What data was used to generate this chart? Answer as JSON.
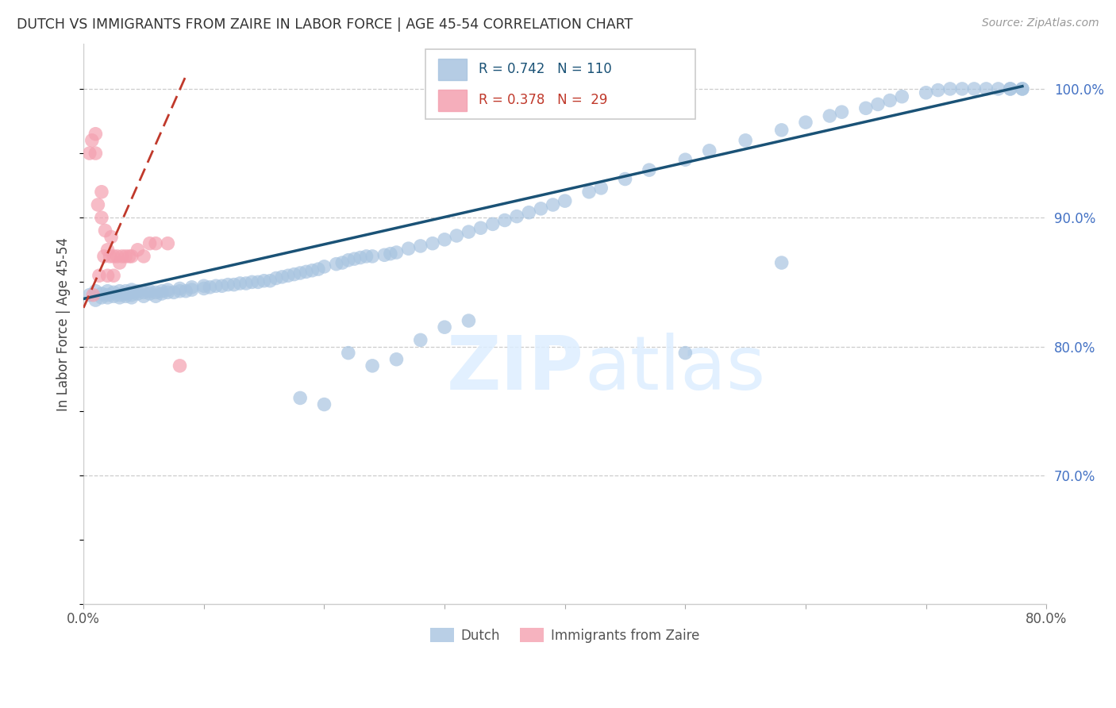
{
  "title": "DUTCH VS IMMIGRANTS FROM ZAIRE IN LABOR FORCE | AGE 45-54 CORRELATION CHART",
  "source": "Source: ZipAtlas.com",
  "ylabel": "In Labor Force | Age 45-54",
  "background_color": "#ffffff",
  "plot_bg_color": "#ffffff",
  "dutch_color": "#a8c4e0",
  "zaire_color": "#f4a0b0",
  "dutch_line_color": "#1a5276",
  "zaire_line_color": "#c0392b",
  "dutch_R": 0.742,
  "dutch_N": 110,
  "zaire_R": 0.378,
  "zaire_N": 29,
  "xmin": 0.0,
  "xmax": 0.8,
  "ymin": 0.6,
  "ymax": 1.035,
  "right_yticks": [
    1.0,
    0.9,
    0.8,
    0.7
  ],
  "right_yticklabels": [
    "100.0%",
    "90.0%",
    "80.0%",
    "70.0%"
  ],
  "watermark": "ZIPatlas",
  "dutch_x": [
    0.005,
    0.01,
    0.01,
    0.015,
    0.015,
    0.02,
    0.02,
    0.02,
    0.025,
    0.025,
    0.03,
    0.03,
    0.03,
    0.035,
    0.035,
    0.035,
    0.04,
    0.04,
    0.04,
    0.04,
    0.045,
    0.045,
    0.05,
    0.05,
    0.055,
    0.055,
    0.06,
    0.06,
    0.065,
    0.065,
    0.07,
    0.07,
    0.075,
    0.08,
    0.08,
    0.085,
    0.09,
    0.09,
    0.1,
    0.1,
    0.105,
    0.11,
    0.115,
    0.12,
    0.125,
    0.13,
    0.135,
    0.14,
    0.145,
    0.15,
    0.155,
    0.16,
    0.165,
    0.17,
    0.175,
    0.18,
    0.185,
    0.19,
    0.195,
    0.2,
    0.21,
    0.215,
    0.22,
    0.225,
    0.23,
    0.235,
    0.24,
    0.25,
    0.255,
    0.26,
    0.27,
    0.28,
    0.29,
    0.3,
    0.31,
    0.32,
    0.33,
    0.34,
    0.35,
    0.36,
    0.37,
    0.38,
    0.39,
    0.4,
    0.42,
    0.43,
    0.45,
    0.47,
    0.5,
    0.52,
    0.55,
    0.58,
    0.6,
    0.62,
    0.63,
    0.65,
    0.66,
    0.67,
    0.68,
    0.7,
    0.71,
    0.72,
    0.73,
    0.74,
    0.75,
    0.76,
    0.77,
    0.77,
    0.78,
    0.78
  ],
  "dutch_y": [
    0.84,
    0.836,
    0.843,
    0.838,
    0.841,
    0.838,
    0.84,
    0.843,
    0.839,
    0.842,
    0.838,
    0.84,
    0.843,
    0.839,
    0.841,
    0.843,
    0.838,
    0.84,
    0.842,
    0.844,
    0.841,
    0.843,
    0.839,
    0.842,
    0.841,
    0.843,
    0.839,
    0.842,
    0.841,
    0.843,
    0.842,
    0.844,
    0.842,
    0.843,
    0.845,
    0.843,
    0.844,
    0.846,
    0.845,
    0.847,
    0.846,
    0.847,
    0.847,
    0.848,
    0.848,
    0.849,
    0.849,
    0.85,
    0.85,
    0.851,
    0.851,
    0.853,
    0.854,
    0.855,
    0.856,
    0.857,
    0.858,
    0.859,
    0.86,
    0.862,
    0.864,
    0.865,
    0.867,
    0.868,
    0.869,
    0.87,
    0.87,
    0.871,
    0.872,
    0.873,
    0.876,
    0.878,
    0.88,
    0.883,
    0.886,
    0.889,
    0.892,
    0.895,
    0.898,
    0.901,
    0.904,
    0.907,
    0.91,
    0.913,
    0.92,
    0.923,
    0.93,
    0.937,
    0.945,
    0.952,
    0.96,
    0.968,
    0.974,
    0.979,
    0.982,
    0.985,
    0.988,
    0.991,
    0.994,
    0.997,
    0.999,
    1.0,
    1.0,
    1.0,
    1.0,
    1.0,
    1.0,
    1.0,
    1.0,
    1.0
  ],
  "dutch_outlier_x": [
    0.22,
    0.24,
    0.26,
    0.28,
    0.3,
    0.32,
    0.5,
    0.18,
    0.2,
    0.58
  ],
  "dutch_outlier_y": [
    0.795,
    0.785,
    0.79,
    0.805,
    0.815,
    0.82,
    0.795,
    0.76,
    0.755,
    0.865
  ],
  "zaire_x": [
    0.005,
    0.007,
    0.008,
    0.01,
    0.01,
    0.012,
    0.013,
    0.015,
    0.015,
    0.017,
    0.018,
    0.02,
    0.02,
    0.022,
    0.023,
    0.025,
    0.025,
    0.028,
    0.03,
    0.032,
    0.035,
    0.038,
    0.04,
    0.045,
    0.05,
    0.055,
    0.06,
    0.07,
    0.08
  ],
  "zaire_y": [
    0.95,
    0.96,
    0.84,
    0.95,
    0.965,
    0.91,
    0.855,
    0.9,
    0.92,
    0.87,
    0.89,
    0.855,
    0.875,
    0.87,
    0.885,
    0.855,
    0.87,
    0.87,
    0.865,
    0.87,
    0.87,
    0.87,
    0.87,
    0.875,
    0.87,
    0.88,
    0.88,
    0.88,
    0.785
  ],
  "legend_R_dutch_text": "R = 0.742   N = 110",
  "legend_R_zaire_text": "R = 0.378   N =  29"
}
